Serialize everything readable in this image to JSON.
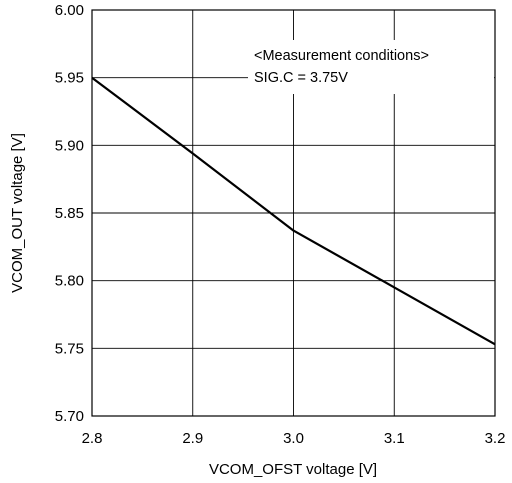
{
  "chart_data": {
    "type": "line",
    "xlabel": "VCOM_OFST voltage [V]",
    "ylabel": "VCOM_OUT voltage [V]",
    "xlim": [
      2.8,
      3.2
    ],
    "ylim": [
      5.7,
      6.0
    ],
    "x_ticks": [
      "2.8",
      "2.9",
      "3.0",
      "3.1",
      "3.2"
    ],
    "y_ticks": [
      "5.70",
      "5.75",
      "5.80",
      "5.85",
      "5.90",
      "5.95",
      "6.00"
    ],
    "grid": true,
    "series": [
      {
        "x": [
          2.8,
          2.9,
          3.0,
          3.1,
          3.2
        ],
        "y": [
          5.95,
          5.894,
          5.837,
          5.795,
          5.753
        ]
      }
    ],
    "annotations": [
      "<Measurement conditions>",
      "SIG.C = 3.75V"
    ]
  }
}
